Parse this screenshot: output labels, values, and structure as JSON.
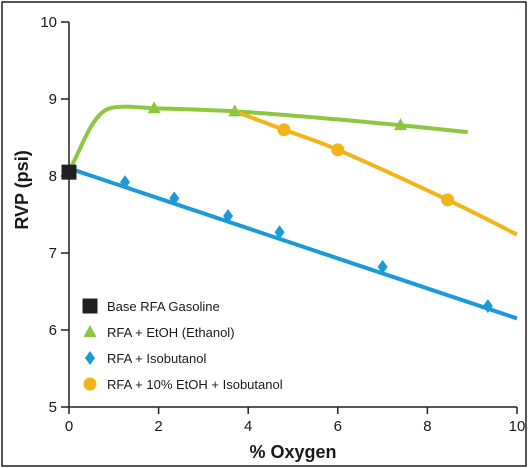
{
  "chart_data": {
    "type": "line",
    "xlabel": "% Oxygen",
    "ylabel": "RVP (psi)",
    "xlim": [
      0,
      10
    ],
    "ylim": [
      5,
      10
    ],
    "xticks": [
      0,
      2,
      4,
      6,
      8,
      10
    ],
    "yticks": [
      5,
      6,
      7,
      8,
      9,
      10
    ],
    "grid": false,
    "legend_position": "bottom-left",
    "series": [
      {
        "name": "Base RFA Gasoline",
        "marker": "square",
        "color": "#231f20",
        "curve": [],
        "points": [
          {
            "x": 0,
            "y": 8.05
          }
        ]
      },
      {
        "name": "RFA + EtOH (Ethanol)",
        "marker": "triangle",
        "color": "#8dc63f",
        "curve": [
          {
            "x": 0,
            "y": 8.05
          },
          {
            "x": 0.2,
            "y": 8.3
          },
          {
            "x": 0.5,
            "y": 8.65
          },
          {
            "x": 0.8,
            "y": 8.85
          },
          {
            "x": 1.2,
            "y": 8.9
          },
          {
            "x": 1.9,
            "y": 8.88
          },
          {
            "x": 3.7,
            "y": 8.84
          },
          {
            "x": 5.5,
            "y": 8.76
          },
          {
            "x": 7.4,
            "y": 8.66
          },
          {
            "x": 8.9,
            "y": 8.57
          }
        ],
        "points": [
          {
            "x": 1.9,
            "y": 8.88
          },
          {
            "x": 3.7,
            "y": 8.84
          },
          {
            "x": 7.4,
            "y": 8.66
          }
        ]
      },
      {
        "name": "RFA + Isobutanol",
        "marker": "diamond",
        "color": "#1b9ad6",
        "curve": [
          {
            "x": 0,
            "y": 8.1
          },
          {
            "x": 10,
            "y": 6.15
          }
        ],
        "points": [
          {
            "x": 1.25,
            "y": 7.92
          },
          {
            "x": 2.35,
            "y": 7.71
          },
          {
            "x": 3.55,
            "y": 7.48
          },
          {
            "x": 4.7,
            "y": 7.27
          },
          {
            "x": 7.0,
            "y": 6.82
          },
          {
            "x": 9.35,
            "y": 6.31
          }
        ]
      },
      {
        "name": "RFA + 10% EtOH + Isobutanol",
        "marker": "circle",
        "color": "#f2b418",
        "curve": [
          {
            "x": 3.7,
            "y": 8.84
          },
          {
            "x": 4.8,
            "y": 8.6
          },
          {
            "x": 6.0,
            "y": 8.34
          },
          {
            "x": 8.45,
            "y": 7.69
          },
          {
            "x": 10,
            "y": 7.24
          }
        ],
        "points": [
          {
            "x": 4.8,
            "y": 8.6
          },
          {
            "x": 6.0,
            "y": 8.34
          },
          {
            "x": 8.45,
            "y": 7.69
          }
        ]
      }
    ]
  }
}
